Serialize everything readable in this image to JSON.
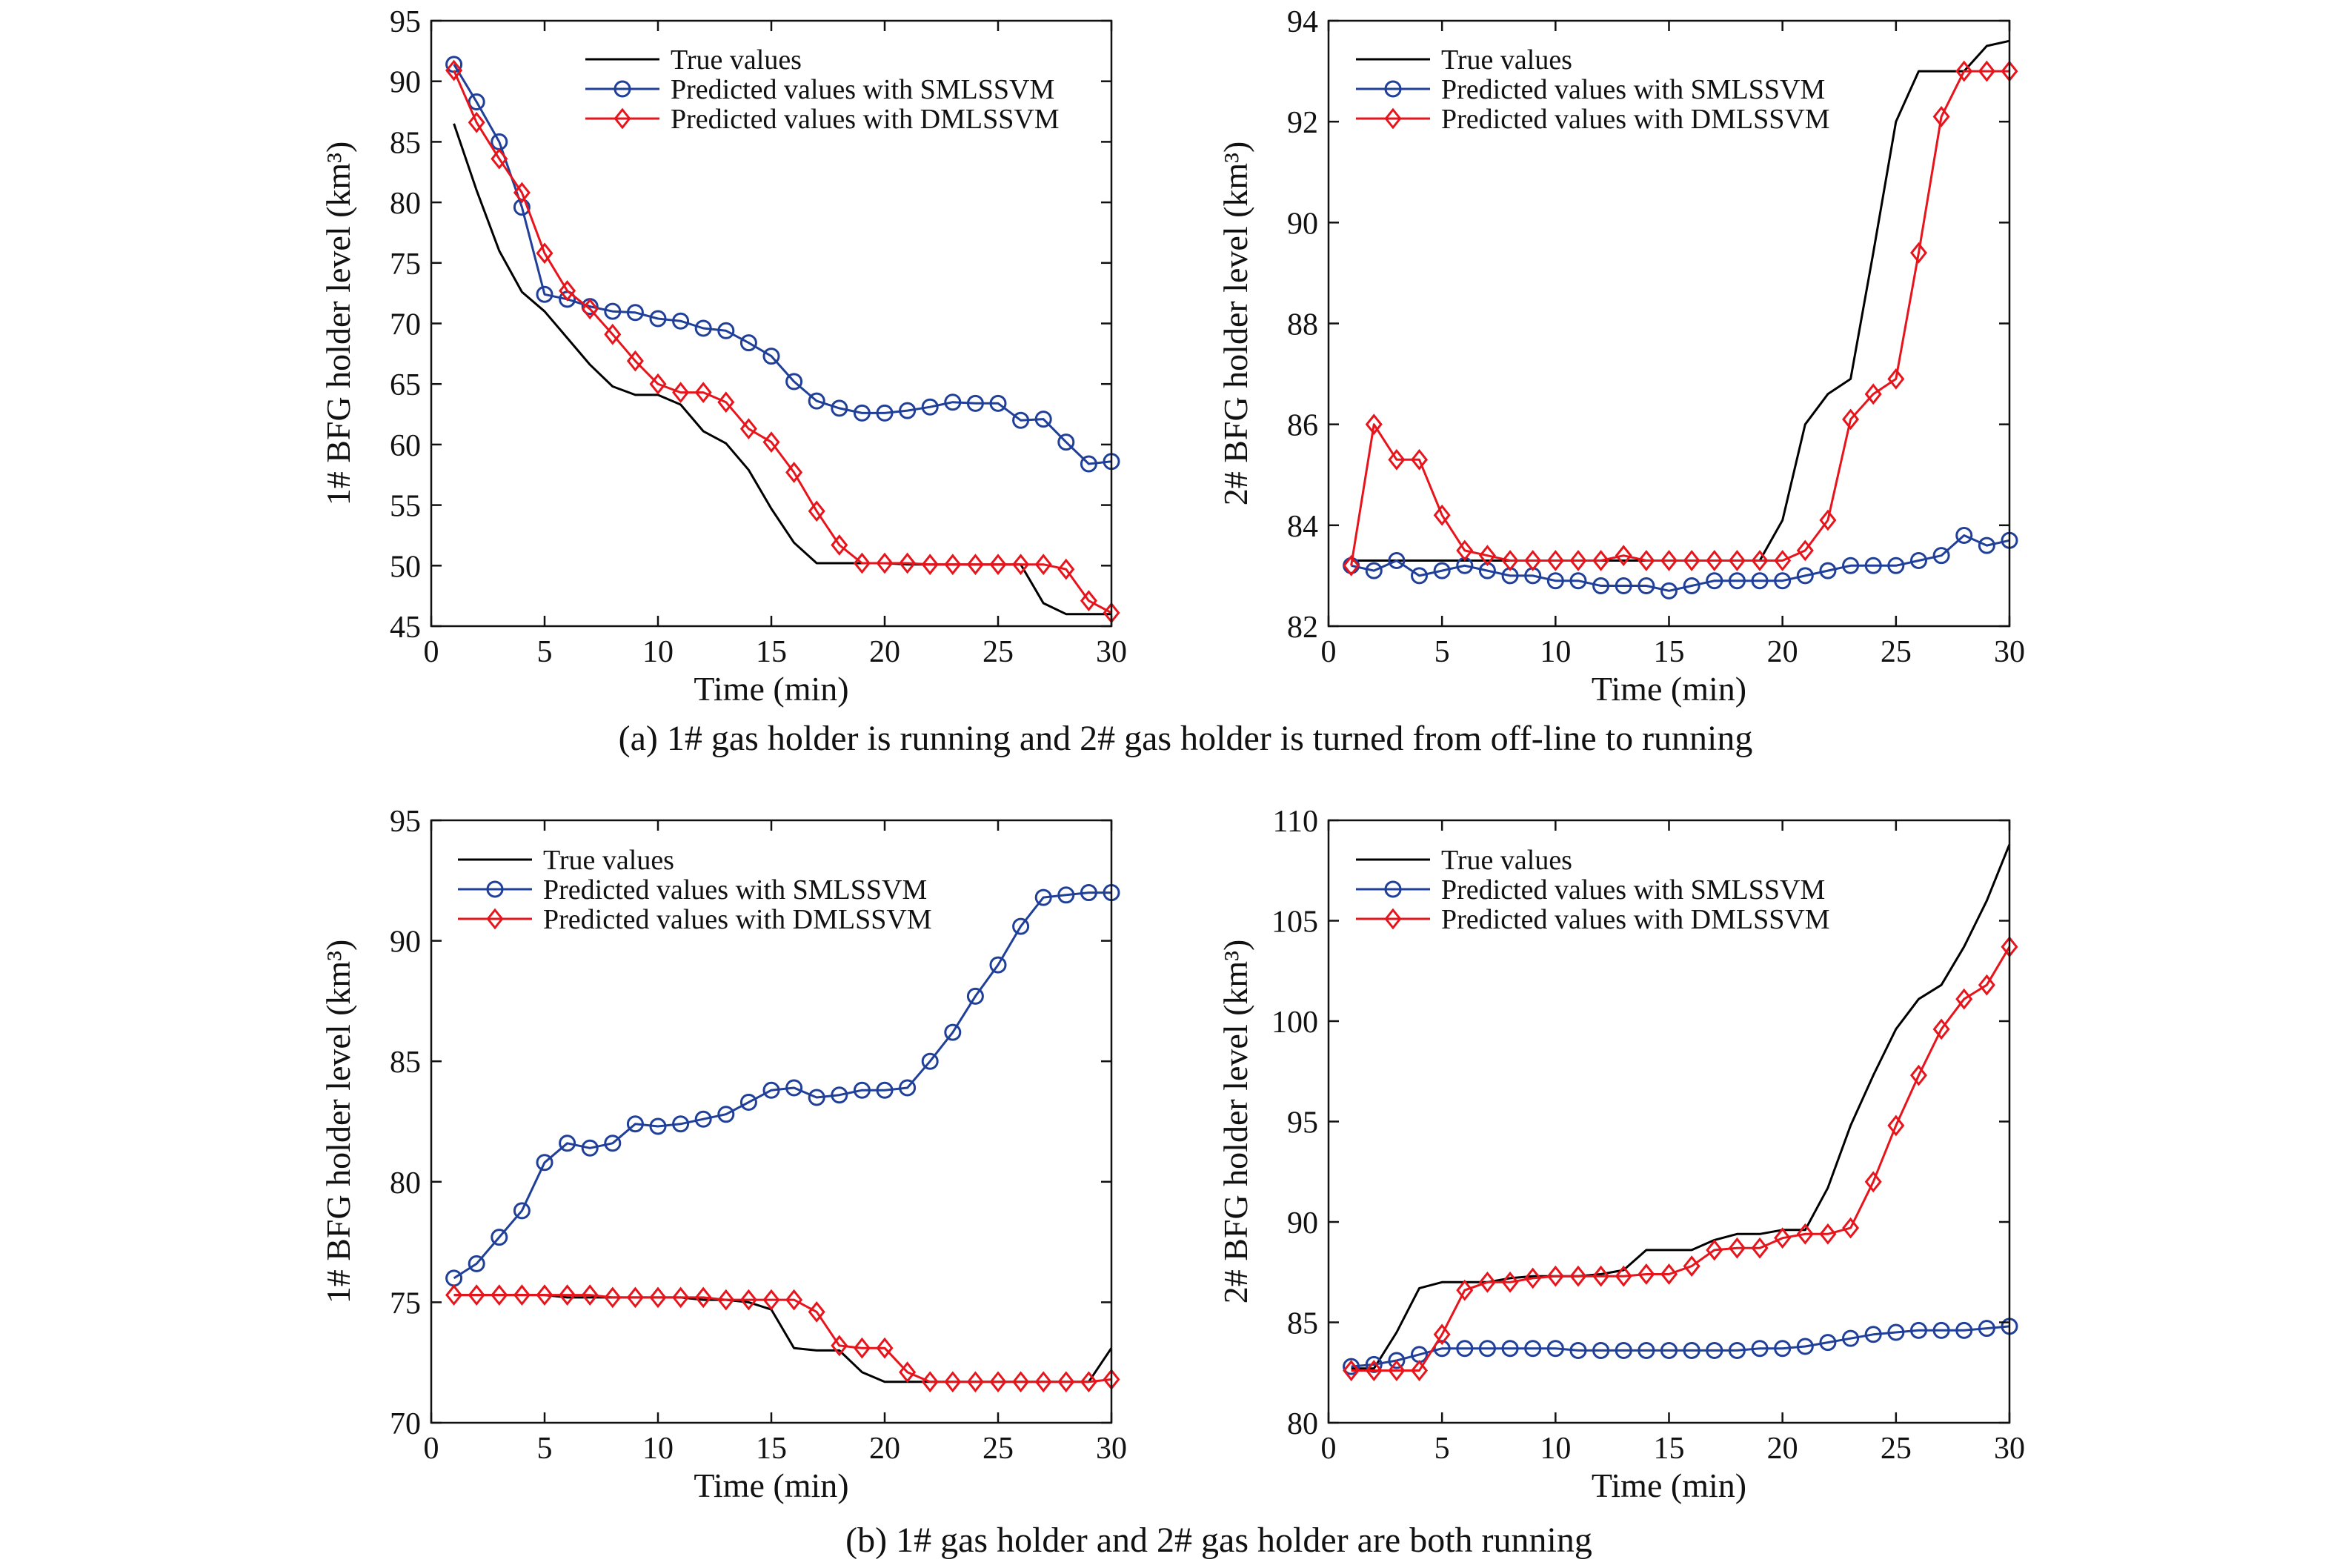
{
  "captions": [
    "(a) 1# gas holder is running and 2# gas holder is turned from off-line to running",
    "(b) 1# gas holder and 2# gas holder are both running"
  ],
  "legend": {
    "true_values": "True values",
    "smlssvm": "Predicted values with SMLSSVM",
    "dmlssvm": "Predicted values with DMLSSVM"
  },
  "colors": {
    "true_values": "#000000",
    "smlssvm": "#1f3f99",
    "dmlssvm": "#e8141c",
    "axis": "#111111"
  },
  "chart_data": [
    {
      "type": "line",
      "panel": "a-left",
      "xlabel": "Time (min)",
      "ylabel": "1# BFG holder level",
      "ylabel_unit": "(km³)",
      "xlim": [
        0,
        30
      ],
      "ylim": [
        45,
        95
      ],
      "xticks": [
        0,
        5,
        10,
        15,
        20,
        25,
        30
      ],
      "yticks": [
        45,
        50,
        55,
        60,
        65,
        70,
        75,
        80,
        85,
        90,
        95
      ],
      "legend_position": "top-right",
      "x": [
        1,
        2,
        3,
        4,
        5,
        6,
        7,
        8,
        9,
        10,
        11,
        12,
        13,
        14,
        15,
        16,
        17,
        18,
        19,
        20,
        21,
        22,
        23,
        24,
        25,
        26,
        27,
        28,
        29,
        30
      ],
      "series": [
        {
          "name": "True values",
          "marker": "none",
          "values": [
            86.5,
            81,
            76,
            72.6,
            71,
            68.8,
            66.6,
            64.8,
            64.1,
            64.1,
            63.3,
            61.1,
            60.1,
            57.9,
            54.7,
            51.9,
            50.2,
            50.2,
            50.2,
            50.2,
            50.1,
            50.1,
            50.1,
            50.1,
            50.1,
            50.1,
            46.9,
            46,
            46,
            46
          ]
        },
        {
          "name": "Predicted values with SMLSSVM",
          "marker": "circle",
          "values": [
            91.4,
            88.3,
            85,
            79.6,
            72.4,
            72,
            71.4,
            71,
            70.9,
            70.4,
            70.2,
            69.6,
            69.4,
            68.4,
            67.3,
            65.2,
            63.6,
            63,
            62.6,
            62.6,
            62.8,
            63.1,
            63.5,
            63.4,
            63.4,
            62,
            62.1,
            60.2,
            58.4,
            58.6
          ]
        },
        {
          "name": "Predicted values with DMLSSVM",
          "marker": "diamond",
          "values": [
            90.9,
            86.6,
            83.6,
            80.8,
            75.8,
            72.7,
            71.2,
            69.1,
            66.9,
            65,
            64.3,
            64.3,
            63.5,
            61.3,
            60.2,
            57.7,
            54.5,
            51.7,
            50.2,
            50.2,
            50.2,
            50.1,
            50.1,
            50.1,
            50.1,
            50.1,
            50.1,
            49.7,
            47.1,
            46.1
          ]
        }
      ]
    },
    {
      "type": "line",
      "panel": "a-right",
      "xlabel": "Time (min)",
      "ylabel": "2# BFG holder level",
      "ylabel_unit": "(km³)",
      "xlim": [
        0,
        30
      ],
      "ylim": [
        82,
        94
      ],
      "xticks": [
        0,
        5,
        10,
        15,
        20,
        25,
        30
      ],
      "yticks": [
        82,
        84,
        86,
        88,
        90,
        92,
        94
      ],
      "legend_position": "top-right",
      "x": [
        1,
        2,
        3,
        4,
        5,
        6,
        7,
        8,
        9,
        10,
        11,
        12,
        13,
        14,
        15,
        16,
        17,
        18,
        19,
        20,
        21,
        22,
        23,
        24,
        25,
        26,
        27,
        28,
        29,
        30
      ],
      "series": [
        {
          "name": "True values",
          "marker": "none",
          "values": [
            83.3,
            83.3,
            83.3,
            83.3,
            83.3,
            83.3,
            83.3,
            83.3,
            83.3,
            83.3,
            83.3,
            83.3,
            83.3,
            83.3,
            83.3,
            83.3,
            83.3,
            83.3,
            83.3,
            84.1,
            86.0,
            86.6,
            86.9,
            89.4,
            92.0,
            93.0,
            93.0,
            93.0,
            93.5,
            93.6
          ]
        },
        {
          "name": "Predicted values with SMLSSVM",
          "marker": "circle",
          "values": [
            83.2,
            83.1,
            83.3,
            83.0,
            83.1,
            83.2,
            83.1,
            83.0,
            83.0,
            82.9,
            82.9,
            82.8,
            82.8,
            82.8,
            82.7,
            82.8,
            82.9,
            82.9,
            82.9,
            82.9,
            83.0,
            83.1,
            83.2,
            83.2,
            83.2,
            83.3,
            83.4,
            83.8,
            83.6,
            83.7
          ]
        },
        {
          "name": "Predicted values with DMLSSVM",
          "marker": "diamond",
          "values": [
            83.2,
            86.0,
            85.3,
            85.3,
            84.2,
            83.5,
            83.4,
            83.3,
            83.3,
            83.3,
            83.3,
            83.3,
            83.4,
            83.3,
            83.3,
            83.3,
            83.3,
            83.3,
            83.3,
            83.3,
            83.5,
            84.1,
            86.1,
            86.6,
            86.9,
            89.4,
            92.1,
            93.0,
            93.0,
            93.0
          ]
        }
      ]
    },
    {
      "type": "line",
      "panel": "b-left",
      "xlabel": "Time (min)",
      "ylabel": "1# BFG holder level",
      "ylabel_unit": "(km³)",
      "xlim": [
        0,
        30
      ],
      "ylim": [
        70,
        95
      ],
      "xticks": [
        0,
        5,
        10,
        15,
        20,
        25,
        30
      ],
      "yticks": [
        70,
        75,
        80,
        85,
        90,
        95
      ],
      "legend_position": "top-left",
      "x": [
        1,
        2,
        3,
        4,
        5,
        6,
        7,
        8,
        9,
        10,
        11,
        12,
        13,
        14,
        15,
        16,
        17,
        18,
        19,
        20,
        21,
        22,
        23,
        24,
        25,
        26,
        27,
        28,
        29,
        30
      ],
      "series": [
        {
          "name": "True values",
          "marker": "none",
          "values": [
            75.3,
            75.3,
            75.3,
            75.3,
            75.3,
            75.2,
            75.2,
            75.2,
            75.2,
            75.2,
            75.2,
            75.1,
            75.1,
            75.0,
            74.7,
            73.1,
            73.0,
            73.0,
            72.1,
            71.7,
            71.7,
            71.7,
            71.7,
            71.7,
            71.7,
            71.7,
            71.7,
            71.7,
            71.7,
            73.1
          ]
        },
        {
          "name": "Predicted values with SMLSSVM",
          "marker": "circle",
          "values": [
            76.0,
            76.6,
            77.7,
            78.8,
            80.8,
            81.6,
            81.4,
            81.6,
            82.4,
            82.3,
            82.4,
            82.6,
            82.8,
            83.3,
            83.8,
            83.9,
            83.5,
            83.6,
            83.8,
            83.8,
            83.9,
            85.0,
            86.2,
            87.7,
            89.0,
            90.6,
            91.8,
            91.9,
            92.0,
            92.0
          ]
        },
        {
          "name": "Predicted values with DMLSSVM",
          "marker": "diamond",
          "values": [
            75.3,
            75.3,
            75.3,
            75.3,
            75.3,
            75.3,
            75.3,
            75.2,
            75.2,
            75.2,
            75.2,
            75.2,
            75.1,
            75.1,
            75.1,
            75.1,
            74.6,
            73.2,
            73.1,
            73.1,
            72.1,
            71.7,
            71.7,
            71.7,
            71.7,
            71.7,
            71.7,
            71.7,
            71.7,
            71.8
          ]
        }
      ]
    },
    {
      "type": "line",
      "panel": "b-right",
      "xlabel": "Time (min)",
      "ylabel": "2# BFG holder level",
      "ylabel_unit": "(km³)",
      "xlim": [
        0,
        30
      ],
      "ylim": [
        80,
        110
      ],
      "xticks": [
        0,
        5,
        10,
        15,
        20,
        25,
        30
      ],
      "yticks": [
        80,
        85,
        90,
        95,
        100,
        105,
        110
      ],
      "legend_position": "top-right",
      "x": [
        1,
        2,
        3,
        4,
        5,
        6,
        7,
        8,
        9,
        10,
        11,
        12,
        13,
        14,
        15,
        16,
        17,
        18,
        19,
        20,
        21,
        22,
        23,
        24,
        25,
        26,
        27,
        28,
        29,
        30
      ],
      "series": [
        {
          "name": "True values",
          "marker": "none",
          "values": [
            82.7,
            82.7,
            84.5,
            86.7,
            87.0,
            87.0,
            87.0,
            87.2,
            87.3,
            87.3,
            87.3,
            87.4,
            87.6,
            88.6,
            88.6,
            88.6,
            89.1,
            89.4,
            89.4,
            89.6,
            89.6,
            91.7,
            94.8,
            97.3,
            99.6,
            101.1,
            101.8,
            103.7,
            106.0,
            108.8
          ]
        },
        {
          "name": "Predicted values with SMLSSVM",
          "marker": "circle",
          "values": [
            82.8,
            82.9,
            83.1,
            83.4,
            83.7,
            83.7,
            83.7,
            83.7,
            83.7,
            83.7,
            83.6,
            83.6,
            83.6,
            83.6,
            83.6,
            83.6,
            83.6,
            83.6,
            83.7,
            83.7,
            83.8,
            84.0,
            84.2,
            84.4,
            84.5,
            84.6,
            84.6,
            84.6,
            84.7,
            84.8
          ]
        },
        {
          "name": "Predicted values with DMLSSVM",
          "marker": "diamond",
          "values": [
            82.6,
            82.6,
            82.6,
            82.6,
            84.4,
            86.6,
            87.0,
            87.0,
            87.2,
            87.3,
            87.3,
            87.3,
            87.3,
            87.4,
            87.4,
            87.8,
            88.6,
            88.7,
            88.7,
            89.2,
            89.4,
            89.4,
            89.7,
            92.0,
            94.8,
            97.3,
            99.6,
            101.1,
            101.8,
            103.7
          ]
        }
      ]
    }
  ]
}
